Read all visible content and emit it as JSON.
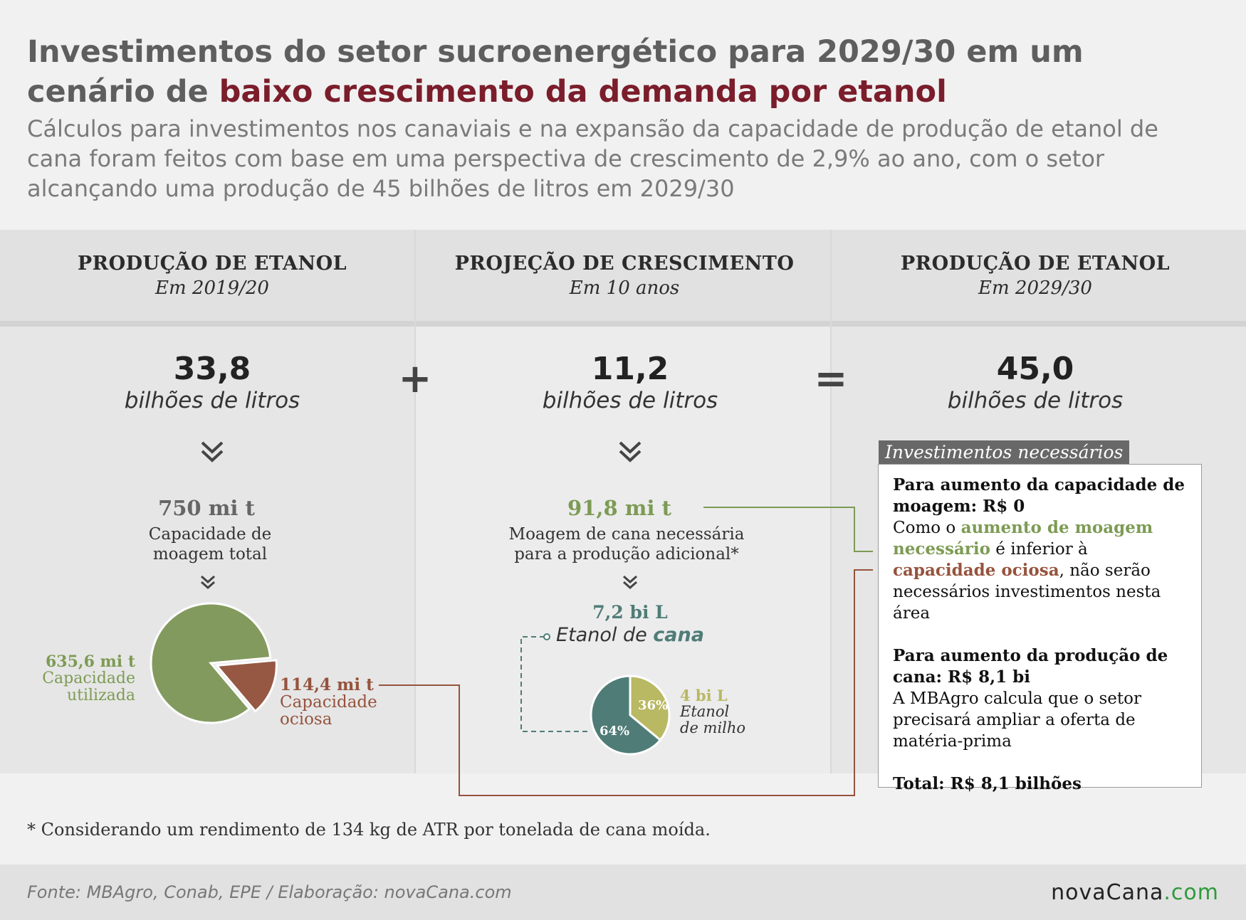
{
  "title": {
    "part1": "Investimentos do setor sucroenergético para 2029/30 em um cenário de ",
    "highlight": "baixo crescimento da demanda por etanol"
  },
  "subtitle": "Cálculos para investimentos nos canaviais e na expansão da capacidade de produção de etanol de cana foram feitos com base em uma perspectiva de crescimento de 2,9% ao ano, com o setor alcançando uma produção de 45 bilhões de litros em 2029/30",
  "columns": [
    {
      "heading": "PRODUÇÃO DE ETANOL",
      "subheading": "Em 2019/20",
      "value": "33,8",
      "unit": "bilhões de litros"
    },
    {
      "heading": "PROJEÇÃO DE CRESCIMENTO",
      "subheading": "Em 10 anos",
      "value": "11,2",
      "unit": "bilhões de litros"
    },
    {
      "heading": "PRODUÇÃO DE ETANOL",
      "subheading": "Em 2029/30",
      "value": "45,0",
      "unit": "bilhões de litros"
    }
  ],
  "operators": {
    "plus": "+",
    "equals": "="
  },
  "left": {
    "capacity_value": "750 mi t",
    "capacity_label_1": "Capacidade de",
    "capacity_label_2": "moagem total",
    "pie": [
      {
        "value_text": "635,6 mi t",
        "label_1": "Capacidade",
        "label_2": "utilizada",
        "value": 635.6,
        "color": "#839a5e"
      },
      {
        "value_text": "114,4 mi t",
        "label_1": "Capacidade",
        "label_2": "ociosa",
        "value": 114.4,
        "color": "#965843"
      }
    ]
  },
  "middle": {
    "cane_value": "91,8 mi t",
    "cane_label_1": "Moagem de cana necessária",
    "cane_label_2": "para a produção adicional*",
    "ethanol_value": "7,2 bi L",
    "ethanol_label_prefix": "Etanol de ",
    "ethanol_label_em": "cana",
    "pie": [
      {
        "pct_text": "36%",
        "value": 36,
        "color": "#b9b863"
      },
      {
        "pct_text": "64%",
        "value": 64,
        "color": "#4f7c77"
      }
    ],
    "corn_value": "4 bi L",
    "corn_label_1": "Etanol",
    "corn_label_2": "de milho"
  },
  "investments": {
    "tab_label": "Investimentos necessários",
    "s1_title": "Para aumento da capacidade de moagem: R$ 0",
    "s1_text_1": "Como o ",
    "s1_green": "aumento de moagem necessário",
    "s1_text_2": " é inferior à ",
    "s1_red": "capacidade ociosa",
    "s1_text_3": ", não serão necessários investimentos nesta área",
    "s2_title": "Para aumento da produção de cana: R$ 8,1 bi",
    "s2_text": "A MBAgro calcula que o setor precisará ampliar a oferta de matéria-prima",
    "total": "Total: R$ 8,1 bilhões"
  },
  "note": "* Considerando um rendimento de 134 kg de ATR por tonelada de cana moída.",
  "source": "Fonte: MBAgro, Conab, EPE / Elaboração: novaCana.com",
  "logo": {
    "main": "novaCana",
    "suffix": ".com"
  },
  "colors": {
    "green": "#7d9b54",
    "red": "#96533d",
    "teal": "#4f7c77",
    "olive": "#b9b863",
    "title_accent": "#7b1d2b"
  }
}
